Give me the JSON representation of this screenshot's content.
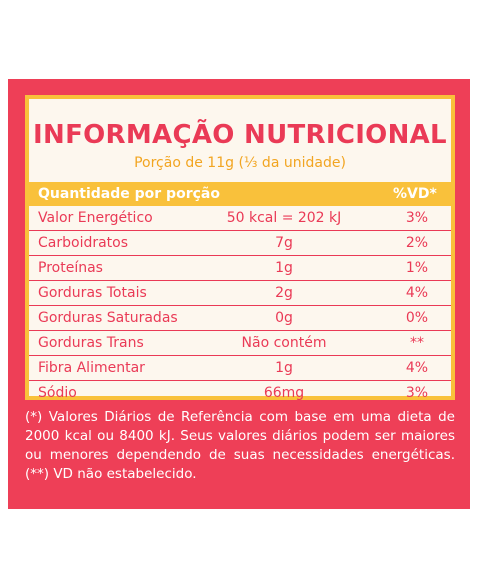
{
  "label": {
    "title": "INFORMAÇÃO NUTRICIONAL",
    "subtitle": "Porção de 11g (⅓ da unidade)",
    "header": {
      "left": "Quantidade por porção",
      "right": "%VD*"
    },
    "rows": [
      {
        "name": "Valor Energético",
        "qty": "50 kcal = 202 kJ",
        "vd": "3%"
      },
      {
        "name": "Carboidratos",
        "qty": "7g",
        "vd": "2%"
      },
      {
        "name": "Proteínas",
        "qty": "1g",
        "vd": "1%"
      },
      {
        "name": "Gorduras Totais",
        "qty": "2g",
        "vd": "4%"
      },
      {
        "name": "Gorduras Saturadas",
        "qty": "0g",
        "vd": "0%"
      },
      {
        "name": "Gorduras Trans",
        "qty": "Não contém",
        "vd": "**"
      },
      {
        "name": "Fibra Alimentar",
        "qty": "1g",
        "vd": "4%"
      },
      {
        "name": "Sódio",
        "qty": "66mg",
        "vd": "3%"
      }
    ],
    "footnote": "(*) Valores Diários de Referência com base em uma dieta de 2000 kcal ou 8400 kJ. Seus valores diários podem ser maiores ou menores dependendo de suas necessidades energéticas. (**) VD não estabelecido."
  },
  "colors": {
    "panel": "#ee3f57",
    "card": "#fdf7ee",
    "accent_yellow": "#f9c13b",
    "text_red": "#ea3a56",
    "subtitle_orange": "#f2a521"
  }
}
